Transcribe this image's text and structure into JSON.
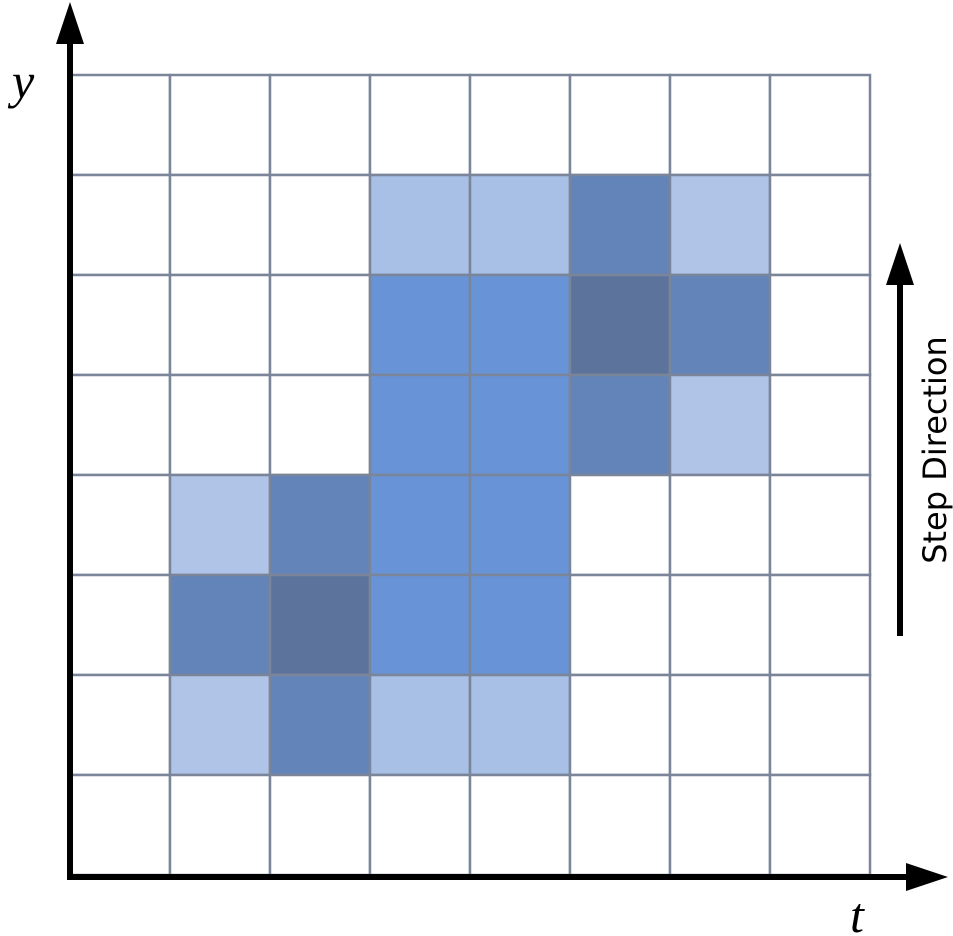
{
  "axes": {
    "y_label": "y",
    "x_label": "t"
  },
  "annotation": {
    "label": "Step Direction"
  },
  "grid": {
    "rows": [
      [
        "#ffffff",
        "#ffffff",
        "#ffffff",
        "#ffffff",
        "#ffffff",
        "#ffffff",
        "#ffffff",
        "#ffffff"
      ],
      [
        "#ffffff",
        "#ffffff",
        "#ffffff",
        "#a8bfe6",
        "#a8bfe6",
        "#6384b9",
        "#b0c4e8",
        "#ffffff"
      ],
      [
        "#ffffff",
        "#ffffff",
        "#ffffff",
        "#6893d6",
        "#6893d6",
        "#5c739c",
        "#6384b9",
        "#ffffff"
      ],
      [
        "#ffffff",
        "#ffffff",
        "#ffffff",
        "#6893d6",
        "#6893d6",
        "#6384b9",
        "#b0c4e8",
        "#ffffff"
      ],
      [
        "#ffffff",
        "#b0c4e8",
        "#6384b9",
        "#6893d6",
        "#6893d6",
        "#ffffff",
        "#ffffff",
        "#ffffff"
      ],
      [
        "#ffffff",
        "#6384b9",
        "#5c739c",
        "#6893d6",
        "#6893d6",
        "#ffffff",
        "#ffffff",
        "#ffffff"
      ],
      [
        "#ffffff",
        "#b0c4e8",
        "#6384b9",
        "#a8bfe6",
        "#a8bfe6",
        "#ffffff",
        "#ffffff",
        "#ffffff"
      ],
      [
        "#ffffff",
        "#ffffff",
        "#ffffff",
        "#ffffff",
        "#ffffff",
        "#ffffff",
        "#ffffff",
        "#ffffff"
      ]
    ]
  }
}
